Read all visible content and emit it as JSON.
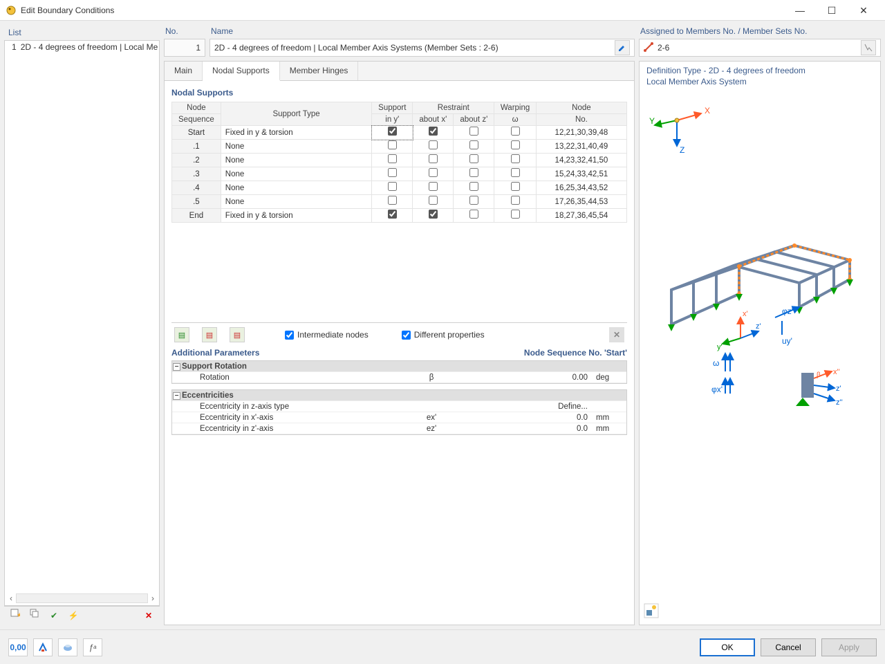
{
  "window": {
    "title": "Edit Boundary Conditions",
    "min": "—",
    "max": "☐",
    "close": "✕"
  },
  "left": {
    "header": "List",
    "item_num": "1",
    "item_label": "2D - 4 degrees of freedom | Local Me"
  },
  "header": {
    "no_label": "No.",
    "no_value": "1",
    "name_label": "Name",
    "name_value": "2D - 4 degrees of freedom | Local Member Axis Systems (Member Sets : 2-6)",
    "assigned_label": "Assigned to Members No. / Member Sets No.",
    "assigned_value": "2-6"
  },
  "tabs": {
    "main": "Main",
    "nodal": "Nodal Supports",
    "hinges": "Member Hinges"
  },
  "nodal": {
    "section": "Nodal Supports",
    "cols": {
      "seq1": "Node",
      "seq2": "Sequence",
      "type": "Support Type",
      "sup1": "Support",
      "sup2": "in y'",
      "res": "Restraint",
      "resx": "about x'",
      "resz": "about z'",
      "warp1": "Warping",
      "warp2": "ω",
      "node1": "Node",
      "node2": "No."
    },
    "rows": [
      {
        "seq": "Start",
        "type": "Fixed in y & torsion",
        "y": true,
        "rx": true,
        "rz": false,
        "w": false,
        "nodes": "12,21,30,39,48"
      },
      {
        "seq": ".1",
        "type": "None",
        "y": false,
        "rx": false,
        "rz": false,
        "w": false,
        "nodes": "13,22,31,40,49"
      },
      {
        "seq": ".2",
        "type": "None",
        "y": false,
        "rx": false,
        "rz": false,
        "w": false,
        "nodes": "14,23,32,41,50"
      },
      {
        "seq": ".3",
        "type": "None",
        "y": false,
        "rx": false,
        "rz": false,
        "w": false,
        "nodes": "15,24,33,42,51"
      },
      {
        "seq": ".4",
        "type": "None",
        "y": false,
        "rx": false,
        "rz": false,
        "w": false,
        "nodes": "16,25,34,43,52"
      },
      {
        "seq": ".5",
        "type": "None",
        "y": false,
        "rx": false,
        "rz": false,
        "w": false,
        "nodes": "17,26,35,44,53"
      },
      {
        "seq": "End",
        "type": "Fixed in y & torsion",
        "y": true,
        "rx": true,
        "rz": false,
        "w": false,
        "nodes": "18,27,36,45,54"
      }
    ],
    "opts": {
      "inter": "Intermediate nodes",
      "diff": "Different properties"
    }
  },
  "params": {
    "title": "Additional Parameters",
    "rhs": "Node Sequence No. 'Start'",
    "group1": "Support Rotation",
    "rot_label": "Rotation",
    "rot_sym": "β",
    "rot_val": "0.00",
    "rot_unit": "deg",
    "group2": "Eccentricities",
    "ez_type": "Eccentricity in z-axis type",
    "ez_type_val": "Define...",
    "ex_label": "Eccentricity in x'-axis",
    "ex_sym": "ex'",
    "ex_val": "0.0",
    "ex_unit": "mm",
    "ez_label": "Eccentricity in z'-axis",
    "ez_sym": "ez'",
    "ez_val": "0.0",
    "ez_unit": "mm"
  },
  "viewer": {
    "line1": "Definition Type - 2D - 4 degrees of freedom",
    "line2": "Local Member Axis System",
    "ax": {
      "x": "X",
      "y": "Y",
      "z": "Z",
      "xp": "x'",
      "yp": "y'",
      "zp": "z'",
      "xpp": "x''",
      "zpp": "z''",
      "phi_x": "φx'",
      "phi_z": "φz'",
      "u_y": "uy'",
      "omega": "ω",
      "beta": "β"
    },
    "colors": {
      "x": "#ff5a2a",
      "y": "#00a000",
      "z": "#0066d6",
      "accent": "#6e84a3"
    }
  },
  "buttons": {
    "ok": "OK",
    "cancel": "Cancel",
    "apply": "Apply"
  }
}
